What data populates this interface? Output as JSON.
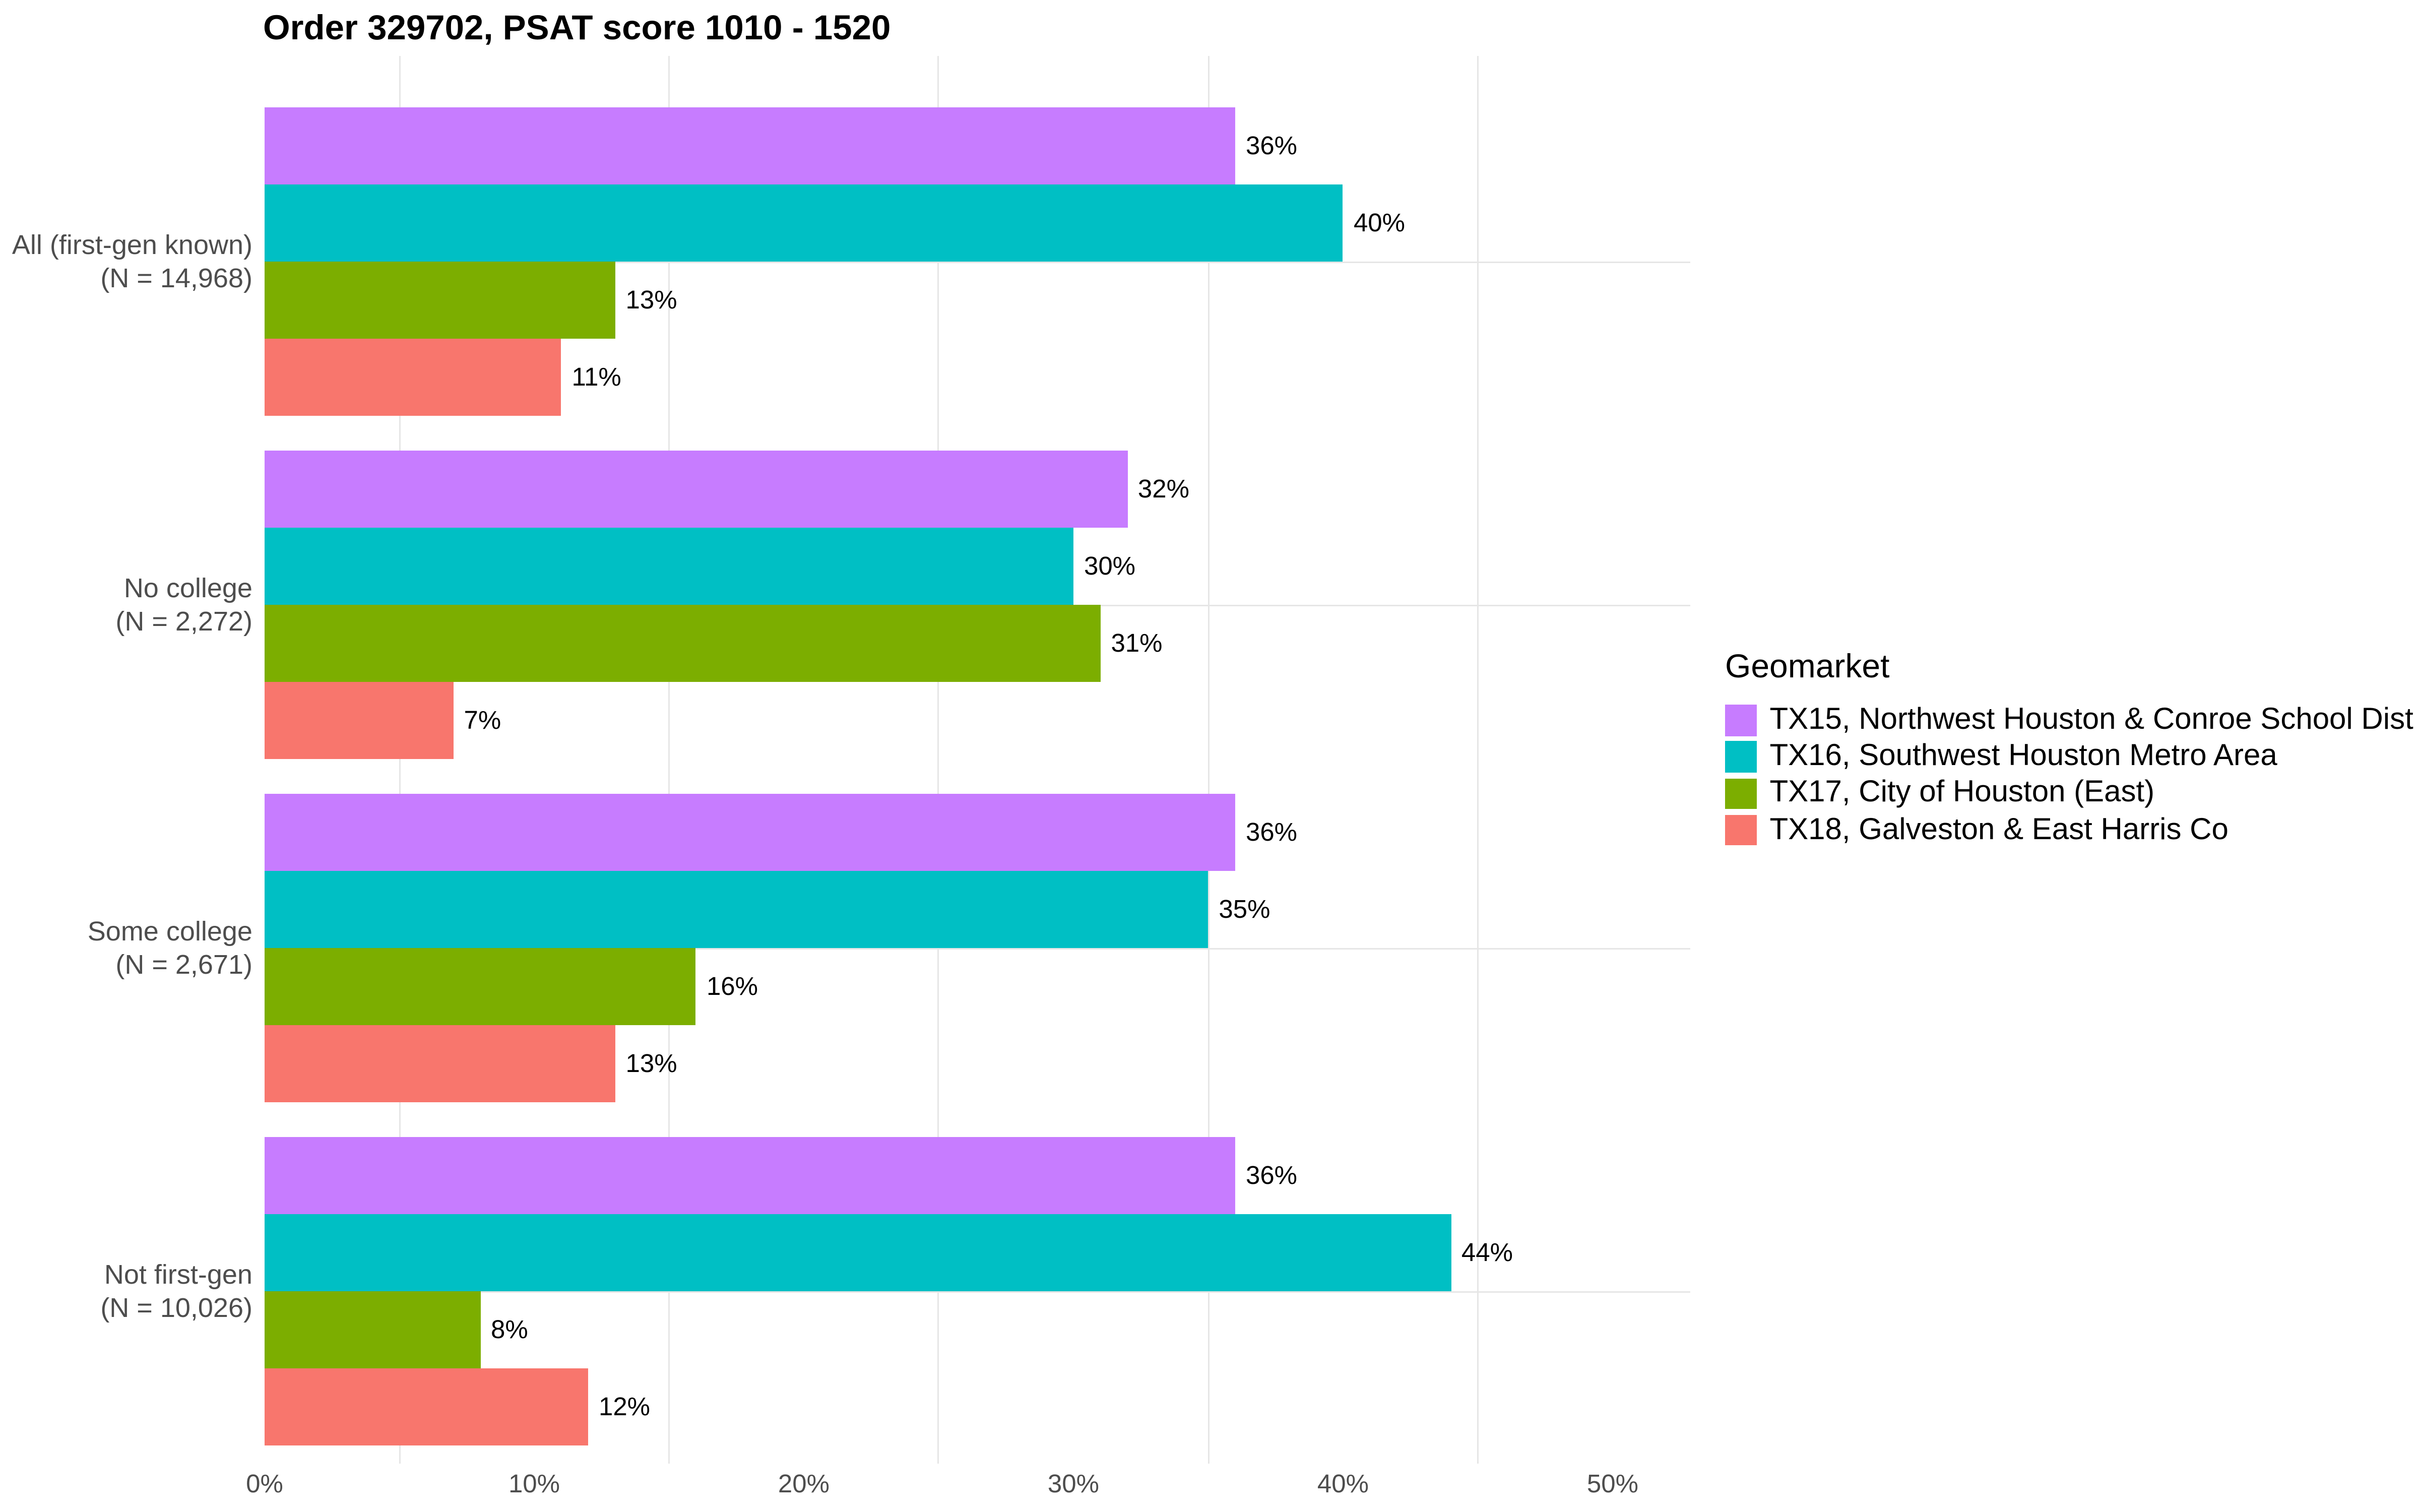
{
  "title": "Order 329702, PSAT score 1010 - 1520",
  "legend": {
    "title": "Geomarket",
    "position": "right"
  },
  "chart_data": {
    "type": "bar",
    "orientation": "horizontal",
    "title": "Order 329702, PSAT score 1010 - 1520",
    "categories": [
      {
        "line1": "All (first-gen known)",
        "line2": "(N = 14,968)"
      },
      {
        "line1": "No college",
        "line2": "(N = 2,272)"
      },
      {
        "line1": "Some college",
        "line2": "(N = 2,671)"
      },
      {
        "line1": "Not first-gen",
        "line2": "(N = 10,026)"
      }
    ],
    "series": [
      {
        "name": "TX15, Northwest Houston & Conroe School Dist",
        "color": "#C77CFF",
        "values": [
          36,
          32,
          36,
          36
        ],
        "value_labels": [
          "36%",
          "32%",
          "36%",
          "36%"
        ]
      },
      {
        "name": "TX16, Southwest Houston Metro Area",
        "color": "#00BFC4",
        "values": [
          40,
          30,
          35,
          44
        ],
        "value_labels": [
          "40%",
          "30%",
          "35%",
          "44%"
        ]
      },
      {
        "name": "TX17, City of Houston (East)",
        "color": "#7CAE00",
        "values": [
          13,
          31,
          16,
          8
        ],
        "value_labels": [
          "13%",
          "31%",
          "16%",
          "8%"
        ]
      },
      {
        "name": "TX18, Galveston & East Harris Co",
        "color": "#F8766D",
        "values": [
          11,
          7,
          13,
          12
        ],
        "value_labels": [
          "11%",
          "7%",
          "13%",
          "12%"
        ]
      }
    ],
    "x_axis": {
      "tick_values": [
        0,
        10,
        20,
        30,
        40,
        50
      ],
      "tick_labels": [
        "0%",
        "10%",
        "20%",
        "30%",
        "40%",
        "50%"
      ],
      "minor_tick_values": [
        5,
        15,
        25,
        35,
        45
      ],
      "range": [
        0,
        52.9
      ]
    },
    "grid": {
      "vertical_minor": true,
      "horizontal_major_at_category_centers": true,
      "color": "#e6e6e6"
    },
    "legend_title": "Geomarket",
    "legend_position": "right",
    "background": "#ffffff"
  }
}
